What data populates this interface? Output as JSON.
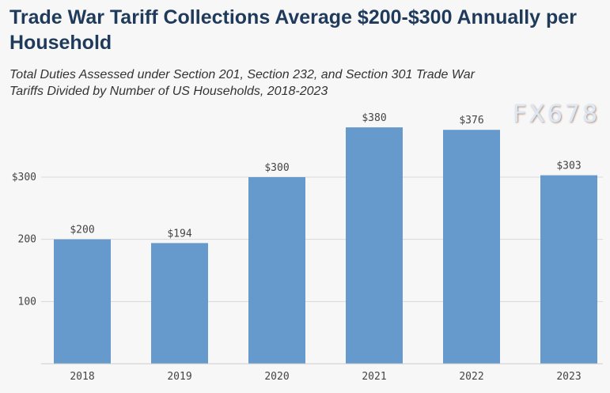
{
  "chart_data": {
    "type": "bar",
    "title": "Trade War Tariff Collections Average $200-$300 Annually per Household",
    "subtitle": "Total Duties Assessed under Section 201, Section 232, and Section 301 Trade War Tariffs Divided by Number of US Households, 2018-2023",
    "categories": [
      "2018",
      "2019",
      "2020",
      "2021",
      "2022",
      "2023"
    ],
    "values": [
      200,
      194,
      300,
      380,
      376,
      303
    ],
    "data_labels": [
      "$200",
      "$194",
      "$300",
      "$380",
      "$376",
      "$303"
    ],
    "yticks": [
      {
        "value": 100,
        "label": "100"
      },
      {
        "value": 200,
        "label": "200"
      },
      {
        "value": 300,
        "label": "$300"
      }
    ],
    "ylim": [
      0,
      400
    ],
    "xlabel": "",
    "ylabel": "",
    "grid": true,
    "bar_color": "#6699cc"
  },
  "watermark": "FX678"
}
